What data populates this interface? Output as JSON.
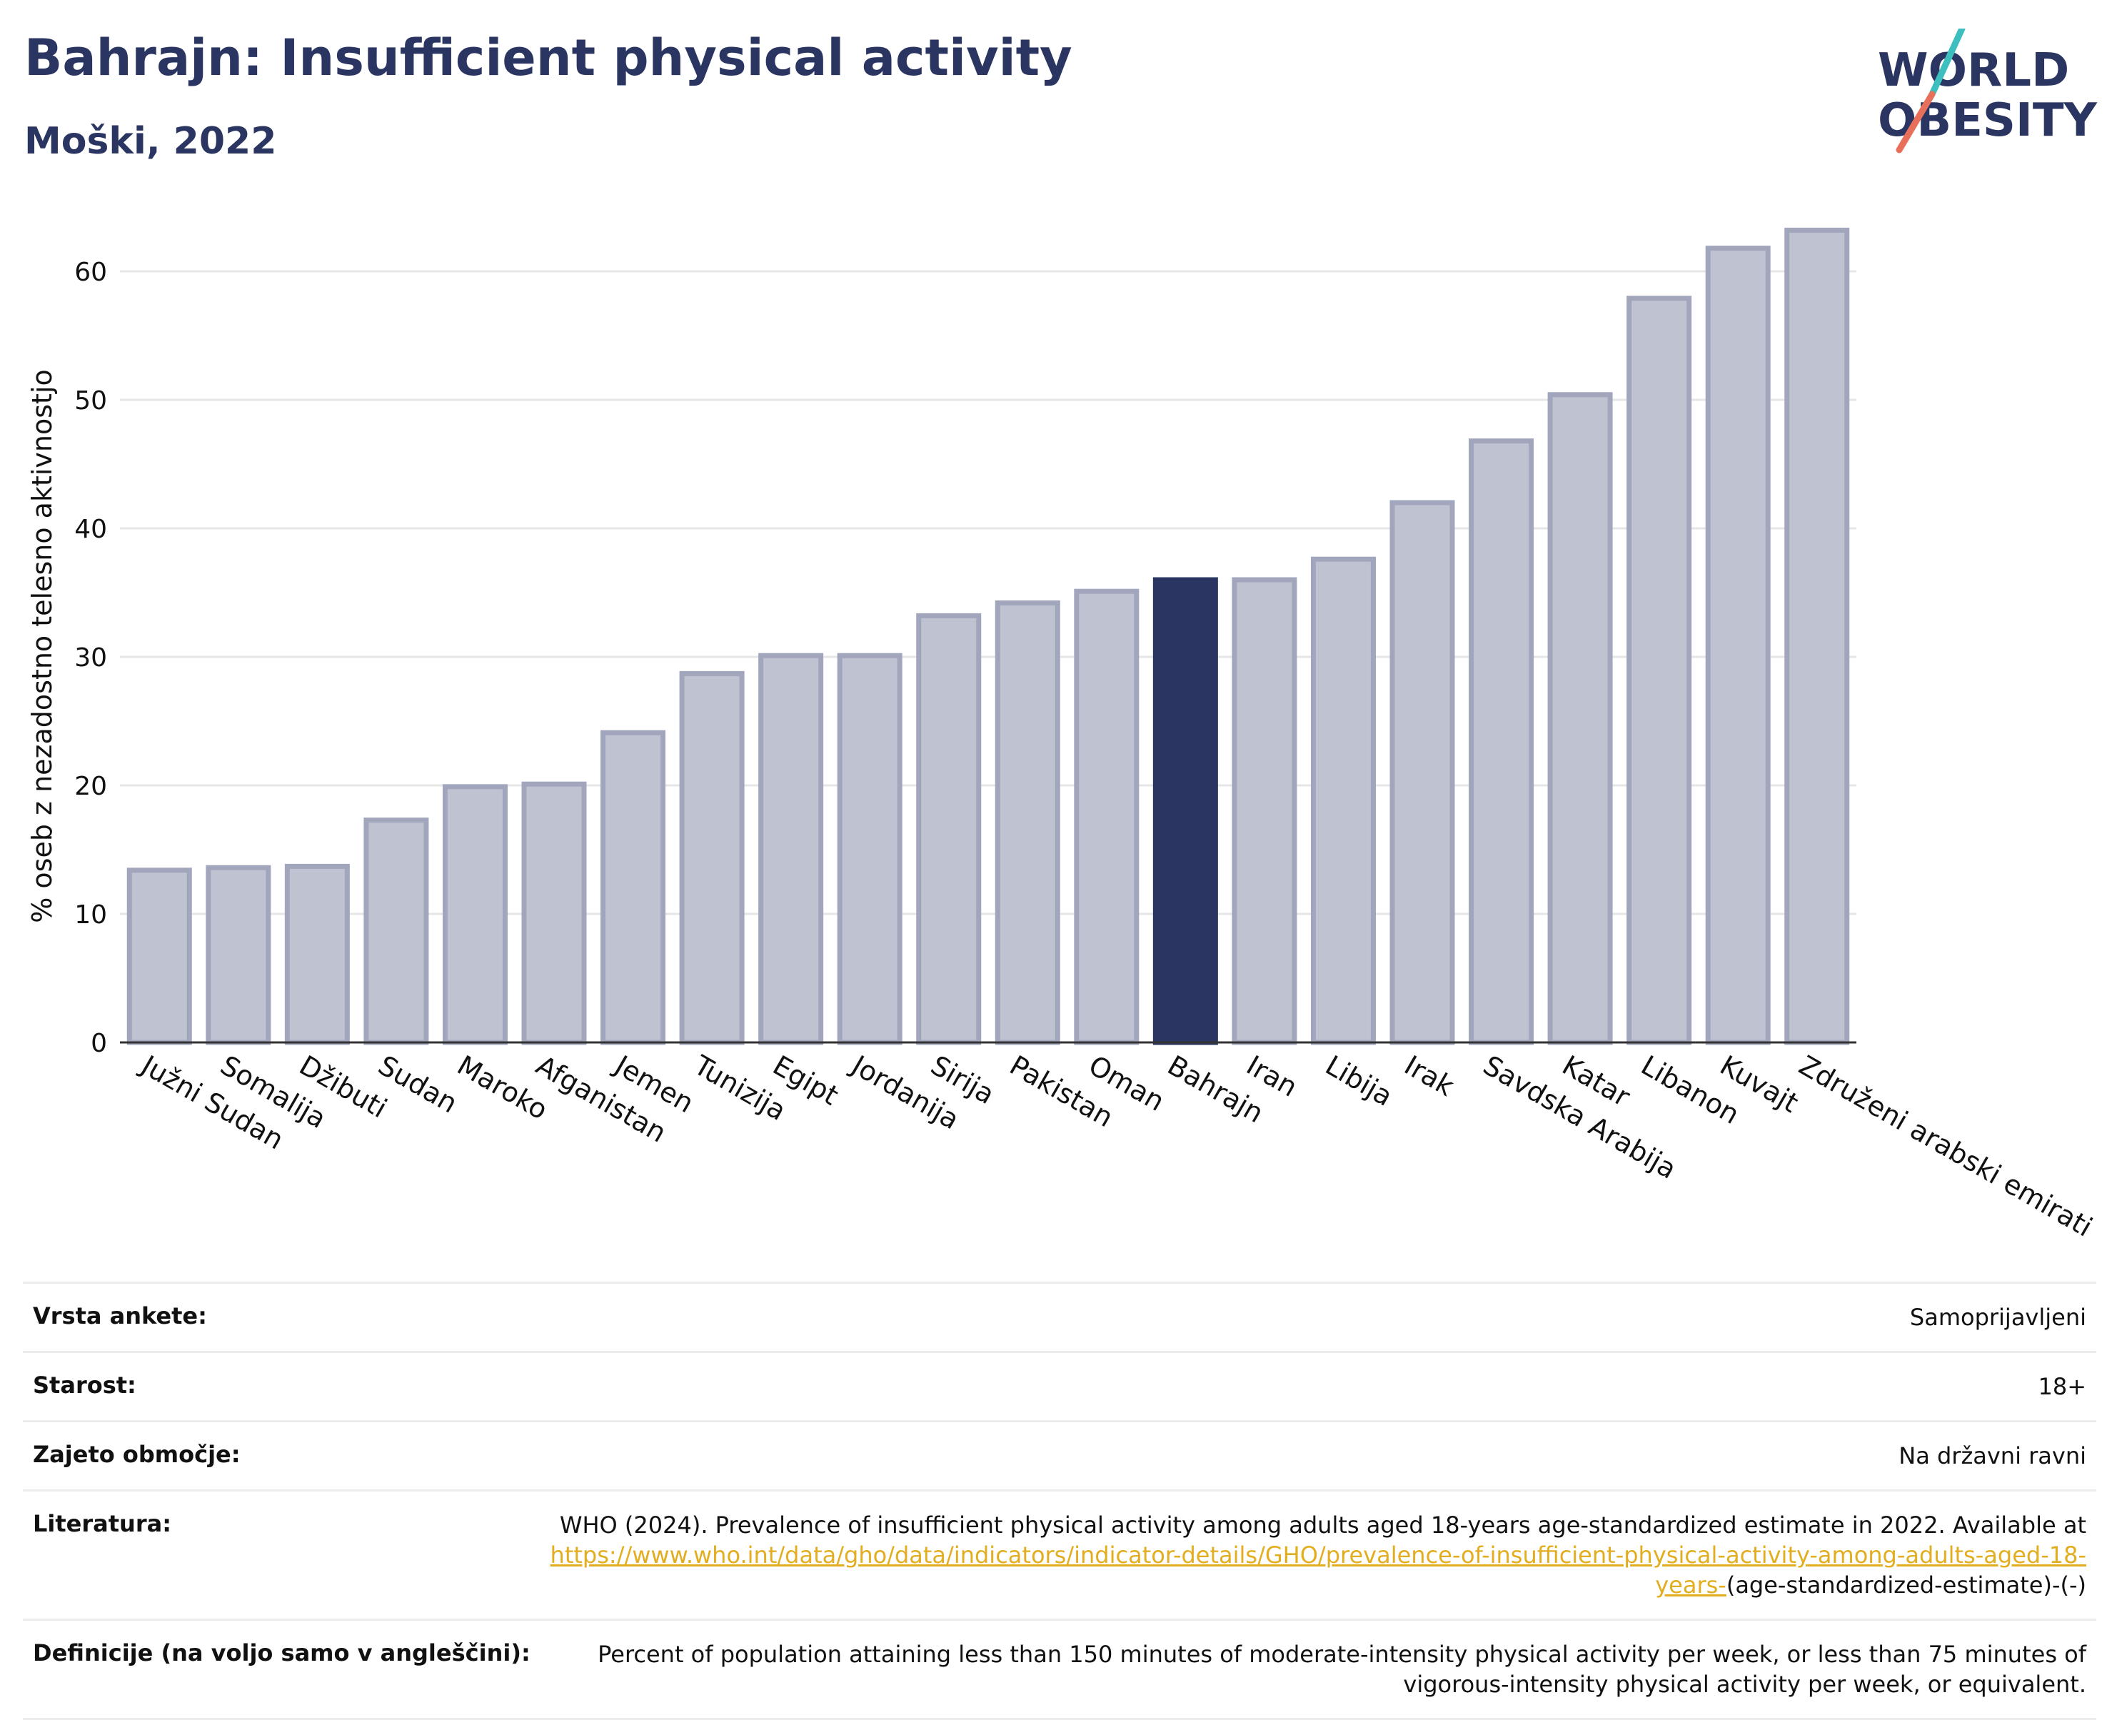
{
  "header": {
    "title": "Bahrajn: Insufficient physical activity",
    "subtitle": "Moški, 2022"
  },
  "logo": {
    "line1": "WORLD",
    "line2": "OBESITY",
    "accent_teal": "#3dbfbf",
    "accent_coral": "#e8705a"
  },
  "colors": {
    "bar_fill": "#bfc2d1",
    "bar_stroke": "#a1a6bd",
    "highlight": "#2a3561",
    "grid": "#e6e6e6",
    "axis": "#333333",
    "text": "#111111"
  },
  "chart_data": {
    "type": "bar",
    "ylabel": "% oseb z nezadostno telesno aktivnostjo",
    "ylim": [
      0,
      65
    ],
    "yticks": [
      0,
      10,
      20,
      30,
      40,
      50,
      60
    ],
    "highlight": "Bahrajn",
    "grid": true,
    "categories": [
      "Južni Sudan",
      "Somalija",
      "Džibuti",
      "Sudan",
      "Maroko",
      "Afganistan",
      "Jemen",
      "Tunizija",
      "Egipt",
      "Jordanija",
      "Sirija",
      "Pakistan",
      "Oman",
      "Bahrajn",
      "Iran",
      "Libija",
      "Irak",
      "Savdska Arabija",
      "Katar",
      "Libanon",
      "Kuvajt",
      "Združeni arabski emirati"
    ],
    "values": [
      13.4,
      13.6,
      13.7,
      17.3,
      19.9,
      20.1,
      24.1,
      28.7,
      30.1,
      30.1,
      33.2,
      34.2,
      35.1,
      36.0,
      36.0,
      37.6,
      42.0,
      46.8,
      50.4,
      57.9,
      61.8,
      63.2
    ]
  },
  "meta": {
    "survey_type": {
      "label": "Vrsta ankete:",
      "value": "Samoprijavljeni"
    },
    "age": {
      "label": "Starost:",
      "value": "18+"
    },
    "coverage": {
      "label": "Zajeto območje:",
      "value": "Na državni ravni"
    },
    "references": {
      "label": "Literatura:",
      "text": "WHO (2024). Prevalence of insufficient physical activity among adults aged 18-years age-standardized estimate in 2022. Available at",
      "link": "https://www.who.int/data/gho/data/indicators/indicator-details/GHO/prevalence-of-insufficient-physical-activity-among-adults-aged-18-years-",
      "suffix": "(age-standardized-estimate)-(-)"
    },
    "definitions": {
      "label": "Definicije (na voljo samo v angleščini):",
      "value": "Percent of population attaining less than 150 minutes of moderate-intensity physical activity per week, or less than 75 minutes of vigorous-intensity physical activity per week, or equivalent."
    }
  }
}
